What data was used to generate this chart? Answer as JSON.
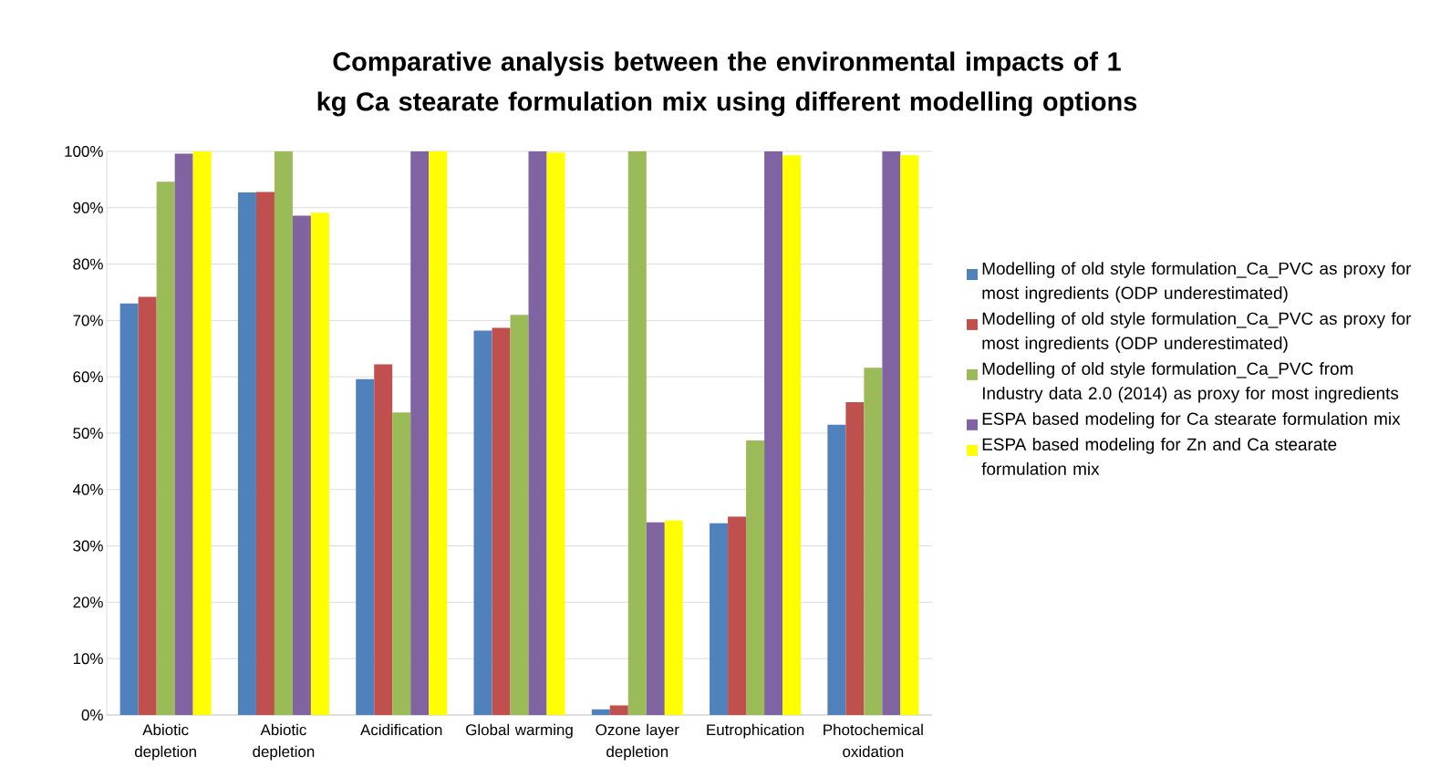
{
  "chart_data": {
    "type": "bar",
    "title": "Comparative analysis between the environmental impacts of 1 kg Ca stearate formulation mix using different modelling options",
    "categories": [
      "Abiotic depletion",
      "Abiotic depletion",
      "Acidification",
      "Global warming",
      "Ozone layer depletion",
      "Eutrophication",
      "Photochemical oxidation"
    ],
    "series": [
      {
        "name": "Modelling of old style formulation_Ca_PVC as proxy for most ingredients (ODP underestimated)",
        "color": "#4f81bd",
        "values": [
          73.0,
          92.7,
          59.6,
          68.2,
          1.0,
          34.0,
          51.5
        ]
      },
      {
        "name": "Modelling of old style formulation_Ca_PVC as proxy for most ingredients (ODP underestimated)",
        "color": "#c0504d",
        "values": [
          74.2,
          92.8,
          62.2,
          68.7,
          1.7,
          35.2,
          55.5
        ]
      },
      {
        "name": "Modelling of old style formulation_Ca_PVC from Industry data 2.0 (2014) as proxy for most ingredients",
        "color": "#9bbb59",
        "values": [
          94.6,
          100,
          53.7,
          71.0,
          100,
          48.7,
          61.6
        ]
      },
      {
        "name": "ESPA based modeling for Ca stearate  formulation mix",
        "color": "#8064a2",
        "values": [
          99.6,
          88.6,
          100,
          100,
          34.2,
          100,
          100
        ]
      },
      {
        "name": "ESPA based modeling for Zn and Ca stearate formulation mix",
        "color": "#ffff00",
        "values": [
          100,
          89.1,
          100,
          99.8,
          34.5,
          99.3,
          99.3
        ]
      }
    ],
    "ylim": [
      0,
      100
    ],
    "yticks": [
      {
        "value": 0,
        "label": "0%"
      },
      {
        "value": 10,
        "label": "10%"
      },
      {
        "value": 20,
        "label": "20%"
      },
      {
        "value": 30,
        "label": "30%"
      },
      {
        "value": 40,
        "label": "40%"
      },
      {
        "value": 50,
        "label": "50%"
      },
      {
        "value": 60,
        "label": "60%"
      },
      {
        "value": 70,
        "label": "70%"
      },
      {
        "value": 80,
        "label": "80%"
      },
      {
        "value": 90,
        "label": "90%"
      },
      {
        "value": 100,
        "label": "100%"
      }
    ],
    "grid": "y",
    "legend": "right"
  }
}
